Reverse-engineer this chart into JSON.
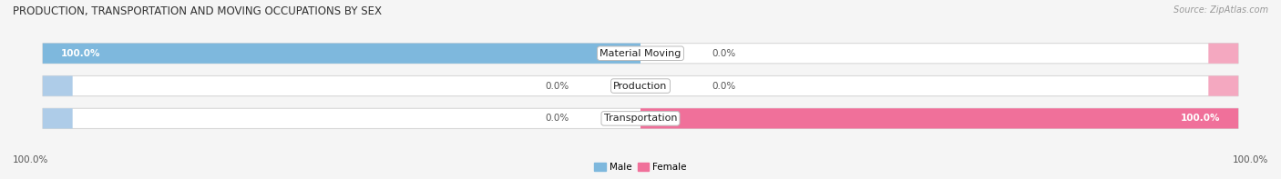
{
  "title": "PRODUCTION, TRANSPORTATION AND MOVING OCCUPATIONS BY SEX",
  "source": "Source: ZipAtlas.com",
  "categories": [
    "Material Moving",
    "Production",
    "Transportation"
  ],
  "male_values": [
    100.0,
    0.0,
    0.0
  ],
  "female_values": [
    0.0,
    0.0,
    100.0
  ],
  "male_color": "#7eb8dd",
  "male_color_light": "#aecce8",
  "female_color": "#f0709a",
  "female_color_light": "#f4a8c0",
  "bar_bg_color": "#f0f0f0",
  "bar_border_color": "#d8d8d8",
  "figsize": [
    14.06,
    1.97
  ],
  "dpi": 100,
  "title_fontsize": 8.5,
  "label_fontsize": 7.5,
  "source_fontsize": 7,
  "cat_label_fontsize": 8,
  "axis_label_left": "100.0%",
  "axis_label_right": "100.0%",
  "bg_color": "#f5f5f5",
  "stub_size": 5.0
}
